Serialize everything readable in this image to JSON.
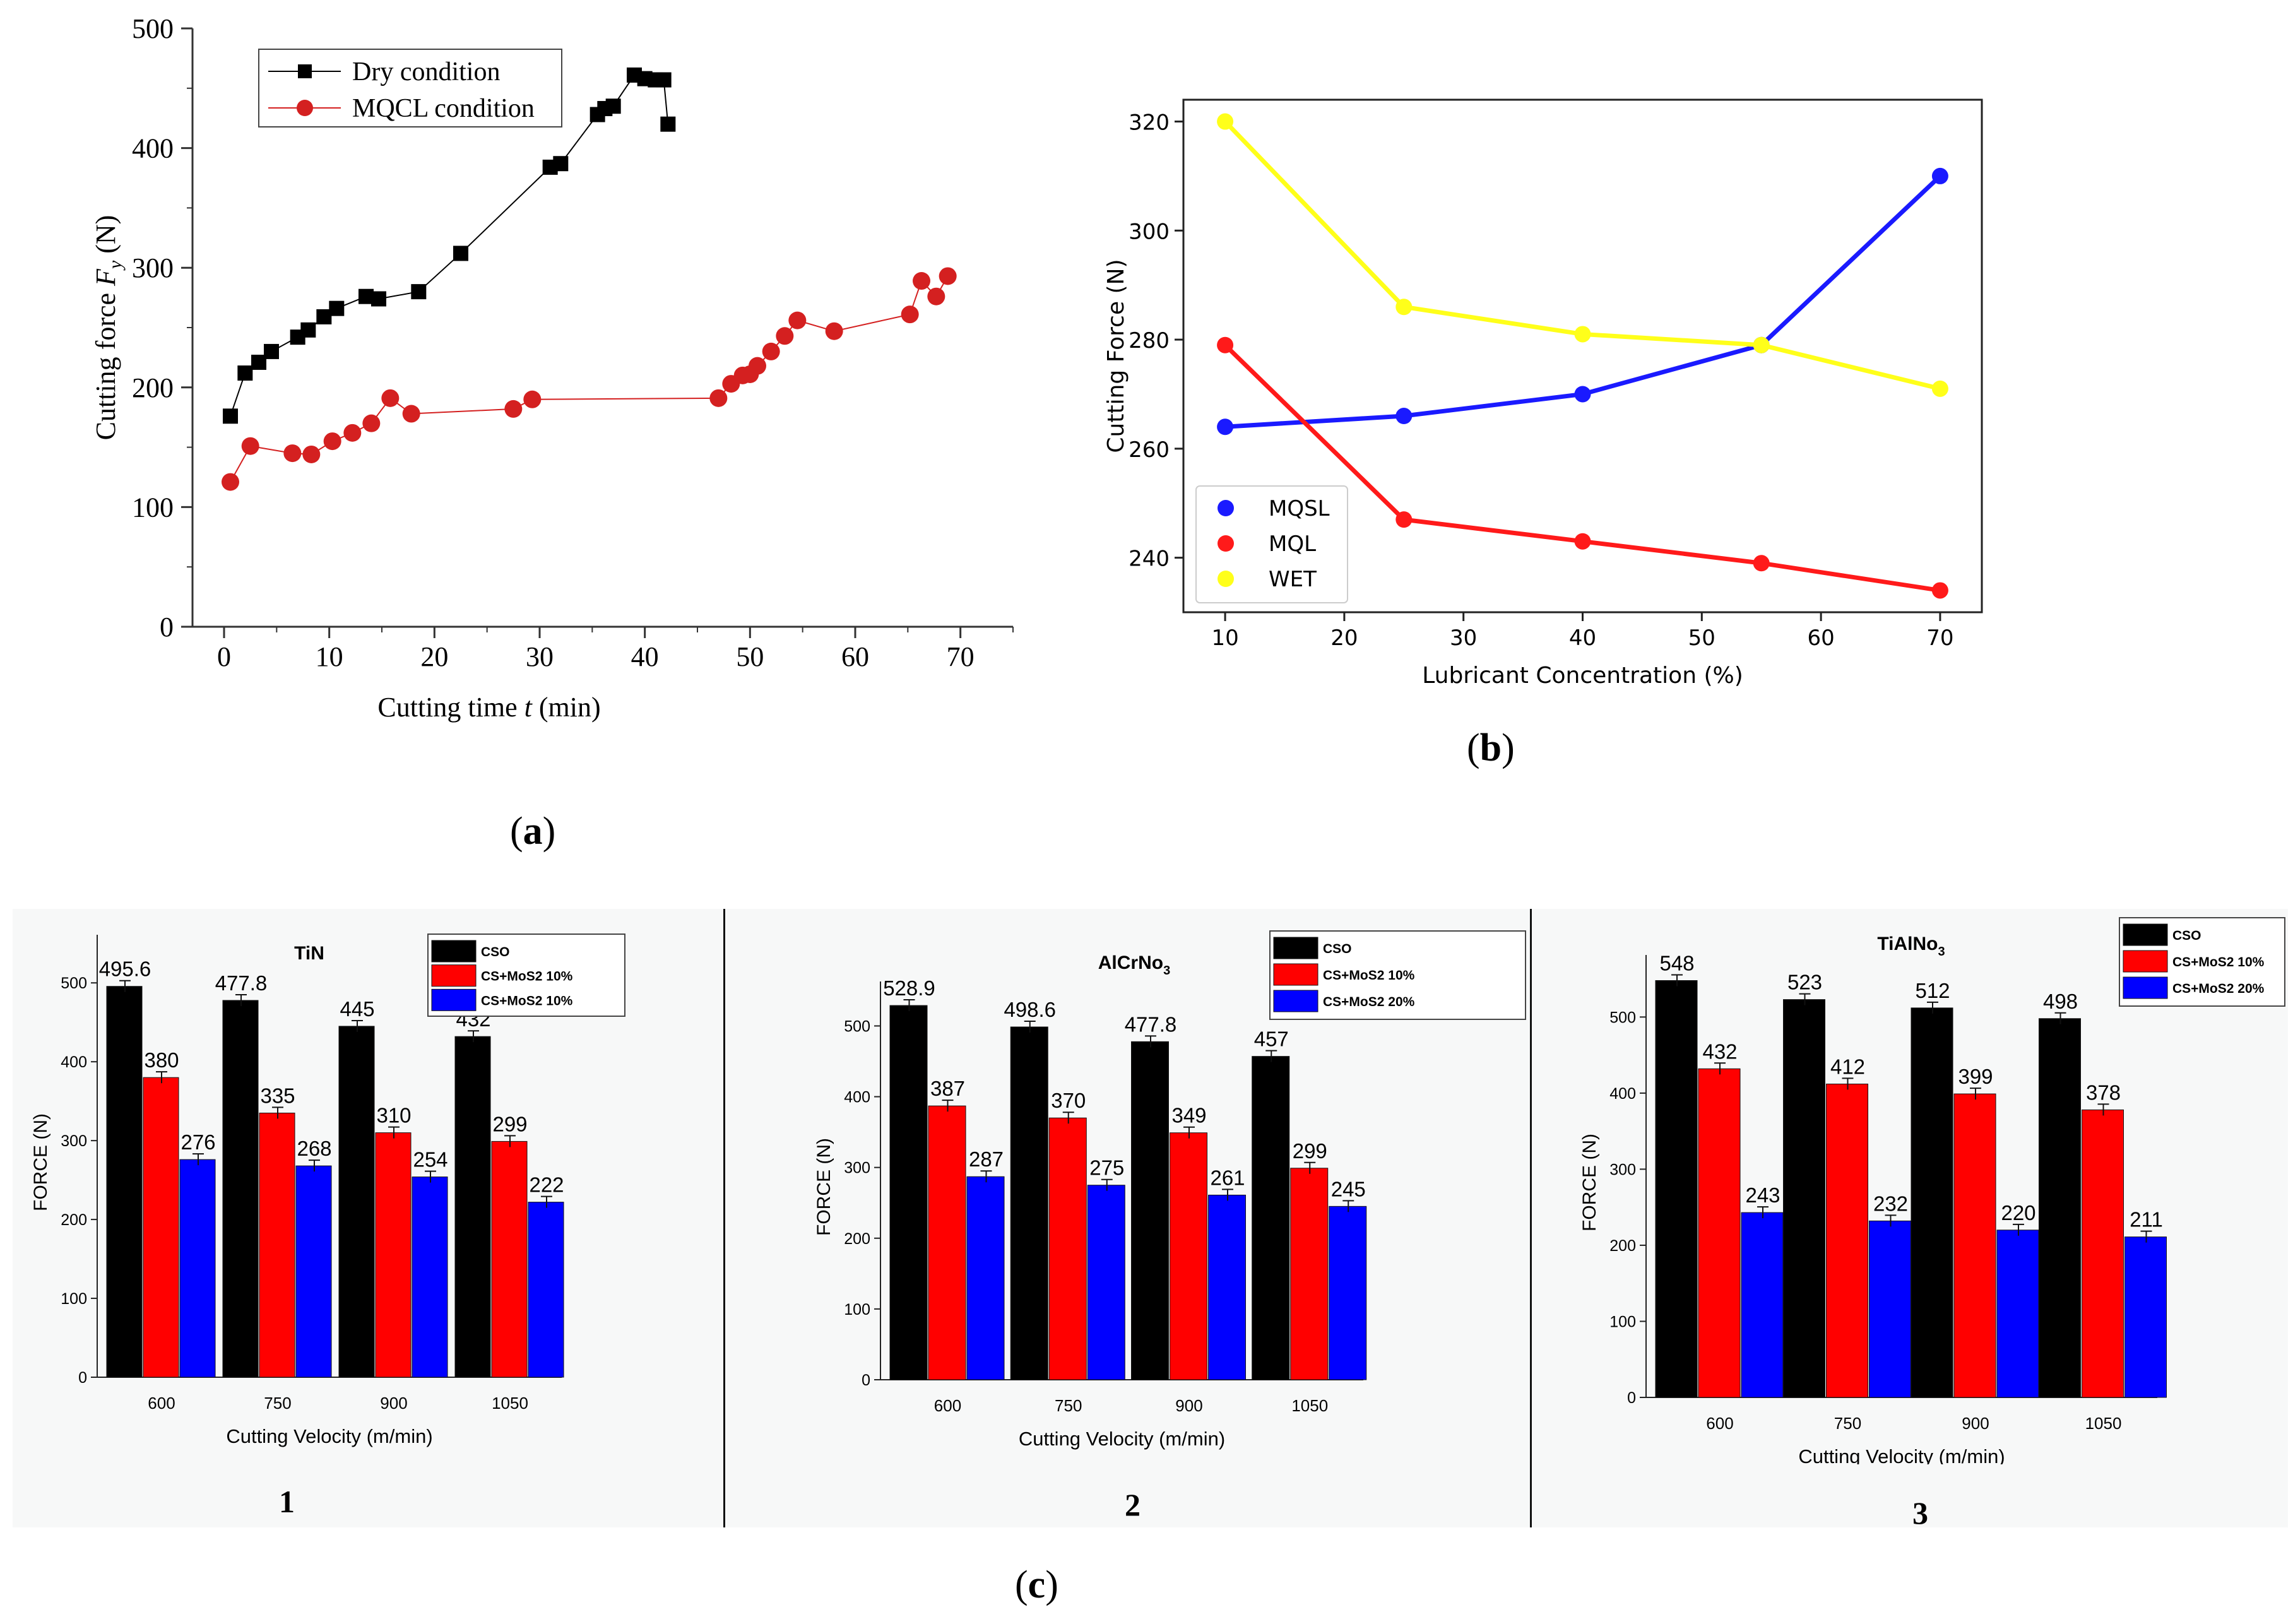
{
  "labels": {
    "a": "a",
    "b": "b",
    "c": "c",
    "c1": "1",
    "c2": "2",
    "c3": "3"
  },
  "chart_data": [
    {
      "id": "a",
      "type": "line",
      "xlabel_prefix": "Cutting time ",
      "xlabel_var": "t",
      "xlabel_suffix": " (min)",
      "ylabel_prefix": "Cutting force ",
      "ylabel_var": "F",
      "ylabel_sub": "y",
      "ylabel_suffix": " (N)",
      "xlim": [
        -3,
        75
      ],
      "ylim": [
        0,
        500
      ],
      "xticks": [
        0,
        10,
        20,
        30,
        40,
        50,
        60,
        70
      ],
      "yticks": [
        0,
        100,
        200,
        300,
        400,
        500
      ],
      "legend_position": "top-left",
      "series": [
        {
          "name": "Dry condition",
          "color": "#000000",
          "marker": "square",
          "points": [
            [
              0.6,
              176
            ],
            [
              2,
              212
            ],
            [
              3.3,
              221
            ],
            [
              4.5,
              230
            ],
            [
              7,
              242
            ],
            [
              8,
              248
            ],
            [
              9.5,
              259
            ],
            [
              10.7,
              266
            ],
            [
              13.5,
              276
            ],
            [
              14.7,
              274
            ],
            [
              18.5,
              280
            ],
            [
              22.5,
              312
            ],
            [
              31,
              384
            ],
            [
              32,
              387
            ],
            [
              35.5,
              428
            ],
            [
              36.2,
              433
            ],
            [
              37,
              435
            ],
            [
              39,
              461
            ],
            [
              40,
              458
            ],
            [
              41,
              457
            ],
            [
              41.8,
              457
            ],
            [
              42.2,
              420
            ]
          ]
        },
        {
          "name": "MQCL condition",
          "color": "#d42020",
          "marker": "circle",
          "points": [
            [
              0.6,
              121
            ],
            [
              2.5,
              151
            ],
            [
              6.5,
              145
            ],
            [
              8.3,
              144
            ],
            [
              10.3,
              155
            ],
            [
              12.2,
              162
            ],
            [
              14,
              170
            ],
            [
              15.8,
              191
            ],
            [
              17.8,
              178
            ],
            [
              27.5,
              182
            ],
            [
              29.3,
              190
            ],
            [
              47,
              191
            ],
            [
              48.2,
              203
            ],
            [
              49.3,
              210
            ],
            [
              50,
              211
            ],
            [
              50.7,
              218
            ],
            [
              52,
              230
            ],
            [
              53.3,
              243
            ],
            [
              54.5,
              256
            ],
            [
              58,
              247
            ],
            [
              65.2,
              261
            ],
            [
              66.3,
              289
            ],
            [
              67.7,
              276
            ],
            [
              68.8,
              293
            ]
          ]
        }
      ]
    },
    {
      "id": "b",
      "type": "line",
      "xlabel": "Lubricant Concentration (%)",
      "ylabel": "Cutting Force (N)",
      "x": [
        10,
        25,
        40,
        55,
        70
      ],
      "xlim": [
        6.5,
        73.5
      ],
      "ylim": [
        230,
        324
      ],
      "xticks": [
        10,
        20,
        30,
        40,
        50,
        60,
        70
      ],
      "yticks": [
        240,
        260,
        280,
        300,
        320
      ],
      "legend_position": "bottom-left",
      "series": [
        {
          "name": "MQSL",
          "color": "#1a1aff",
          "values": [
            264,
            266,
            270,
            279,
            310
          ]
        },
        {
          "name": "MQL",
          "color": "#ff1a1a",
          "values": [
            279,
            247,
            243,
            239,
            234
          ]
        },
        {
          "name": "WET",
          "color": "#ffff1a",
          "values": [
            320,
            286,
            281,
            279,
            271
          ]
        }
      ]
    },
    {
      "id": "c1",
      "type": "bar",
      "title": "TiN",
      "title_sub": "",
      "xlabel": "Cutting Velocity (m/min)",
      "ylabel": "FORCE (N)",
      "categories": [
        "600",
        "750",
        "900",
        "1050"
      ],
      "ylim": [
        0,
        545
      ],
      "yticks": [
        0,
        100,
        200,
        300,
        400,
        500
      ],
      "legend_position": "top-right",
      "series": [
        {
          "name": "CSO",
          "color": "#000000",
          "values": [
            495.6,
            477.8,
            445,
            432
          ],
          "labels": [
            "495.6",
            "477.8",
            "445",
            "432"
          ]
        },
        {
          "name": "CS+MoS2 10%",
          "color": "#ff0000",
          "values": [
            380,
            335,
            310,
            299
          ],
          "labels": [
            "380",
            "335",
            "310",
            "299"
          ]
        },
        {
          "name": "CS+MoS2 10%",
          "color": "#0000ff",
          "values": [
            276,
            268,
            254,
            222
          ],
          "labels": [
            "276",
            "268",
            "254",
            "222"
          ]
        }
      ]
    },
    {
      "id": "c2",
      "type": "bar",
      "title": "AlCrNo",
      "title_sub": "3",
      "xlabel": "Cutting Velocity (m/min)",
      "ylabel": "FORCE (N)",
      "categories": [
        "600",
        "750",
        "900",
        "1050"
      ],
      "ylim": [
        0,
        545
      ],
      "yticks": [
        0,
        100,
        200,
        300,
        400,
        500
      ],
      "legend_position": "top-right",
      "series": [
        {
          "name": "CSO",
          "color": "#000000",
          "values": [
            528.9,
            498.6,
            477.8,
            457
          ],
          "labels": [
            "528.9",
            "498.6",
            "477.8",
            "457"
          ]
        },
        {
          "name": "CS+MoS2 10%",
          "color": "#ff0000",
          "values": [
            387,
            370,
            349,
            299
          ],
          "labels": [
            "387",
            "370",
            "349",
            "299"
          ]
        },
        {
          "name": "CS+MoS2 20%",
          "color": "#0000ff",
          "values": [
            287,
            275,
            261,
            245
          ],
          "labels": [
            "287",
            "275",
            "261",
            "245"
          ]
        }
      ]
    },
    {
      "id": "c3",
      "type": "bar",
      "title": "TiAlNo",
      "title_sub": "3",
      "xlabel": "Cutting Velocity (m/min)",
      "ylabel": "FORCE (N)",
      "categories": [
        "600",
        "750",
        "900",
        "1050"
      ],
      "ylim": [
        0,
        565
      ],
      "yticks": [
        0,
        100,
        200,
        300,
        400,
        500
      ],
      "legend_position": "top-right",
      "series": [
        {
          "name": "CSO",
          "color": "#000000",
          "values": [
            548,
            523,
            512,
            498
          ],
          "labels": [
            "548",
            "523",
            "512",
            "498"
          ]
        },
        {
          "name": "CS+MoS2 10%",
          "color": "#ff0000",
          "values": [
            432,
            412,
            399,
            378
          ],
          "labels": [
            "432",
            "412",
            "399",
            "378"
          ]
        },
        {
          "name": "CS+MoS2 20%",
          "color": "#0000ff",
          "values": [
            243,
            232,
            220,
            211
          ],
          "labels": [
            "243",
            "232",
            "220",
            "211"
          ]
        }
      ]
    }
  ]
}
